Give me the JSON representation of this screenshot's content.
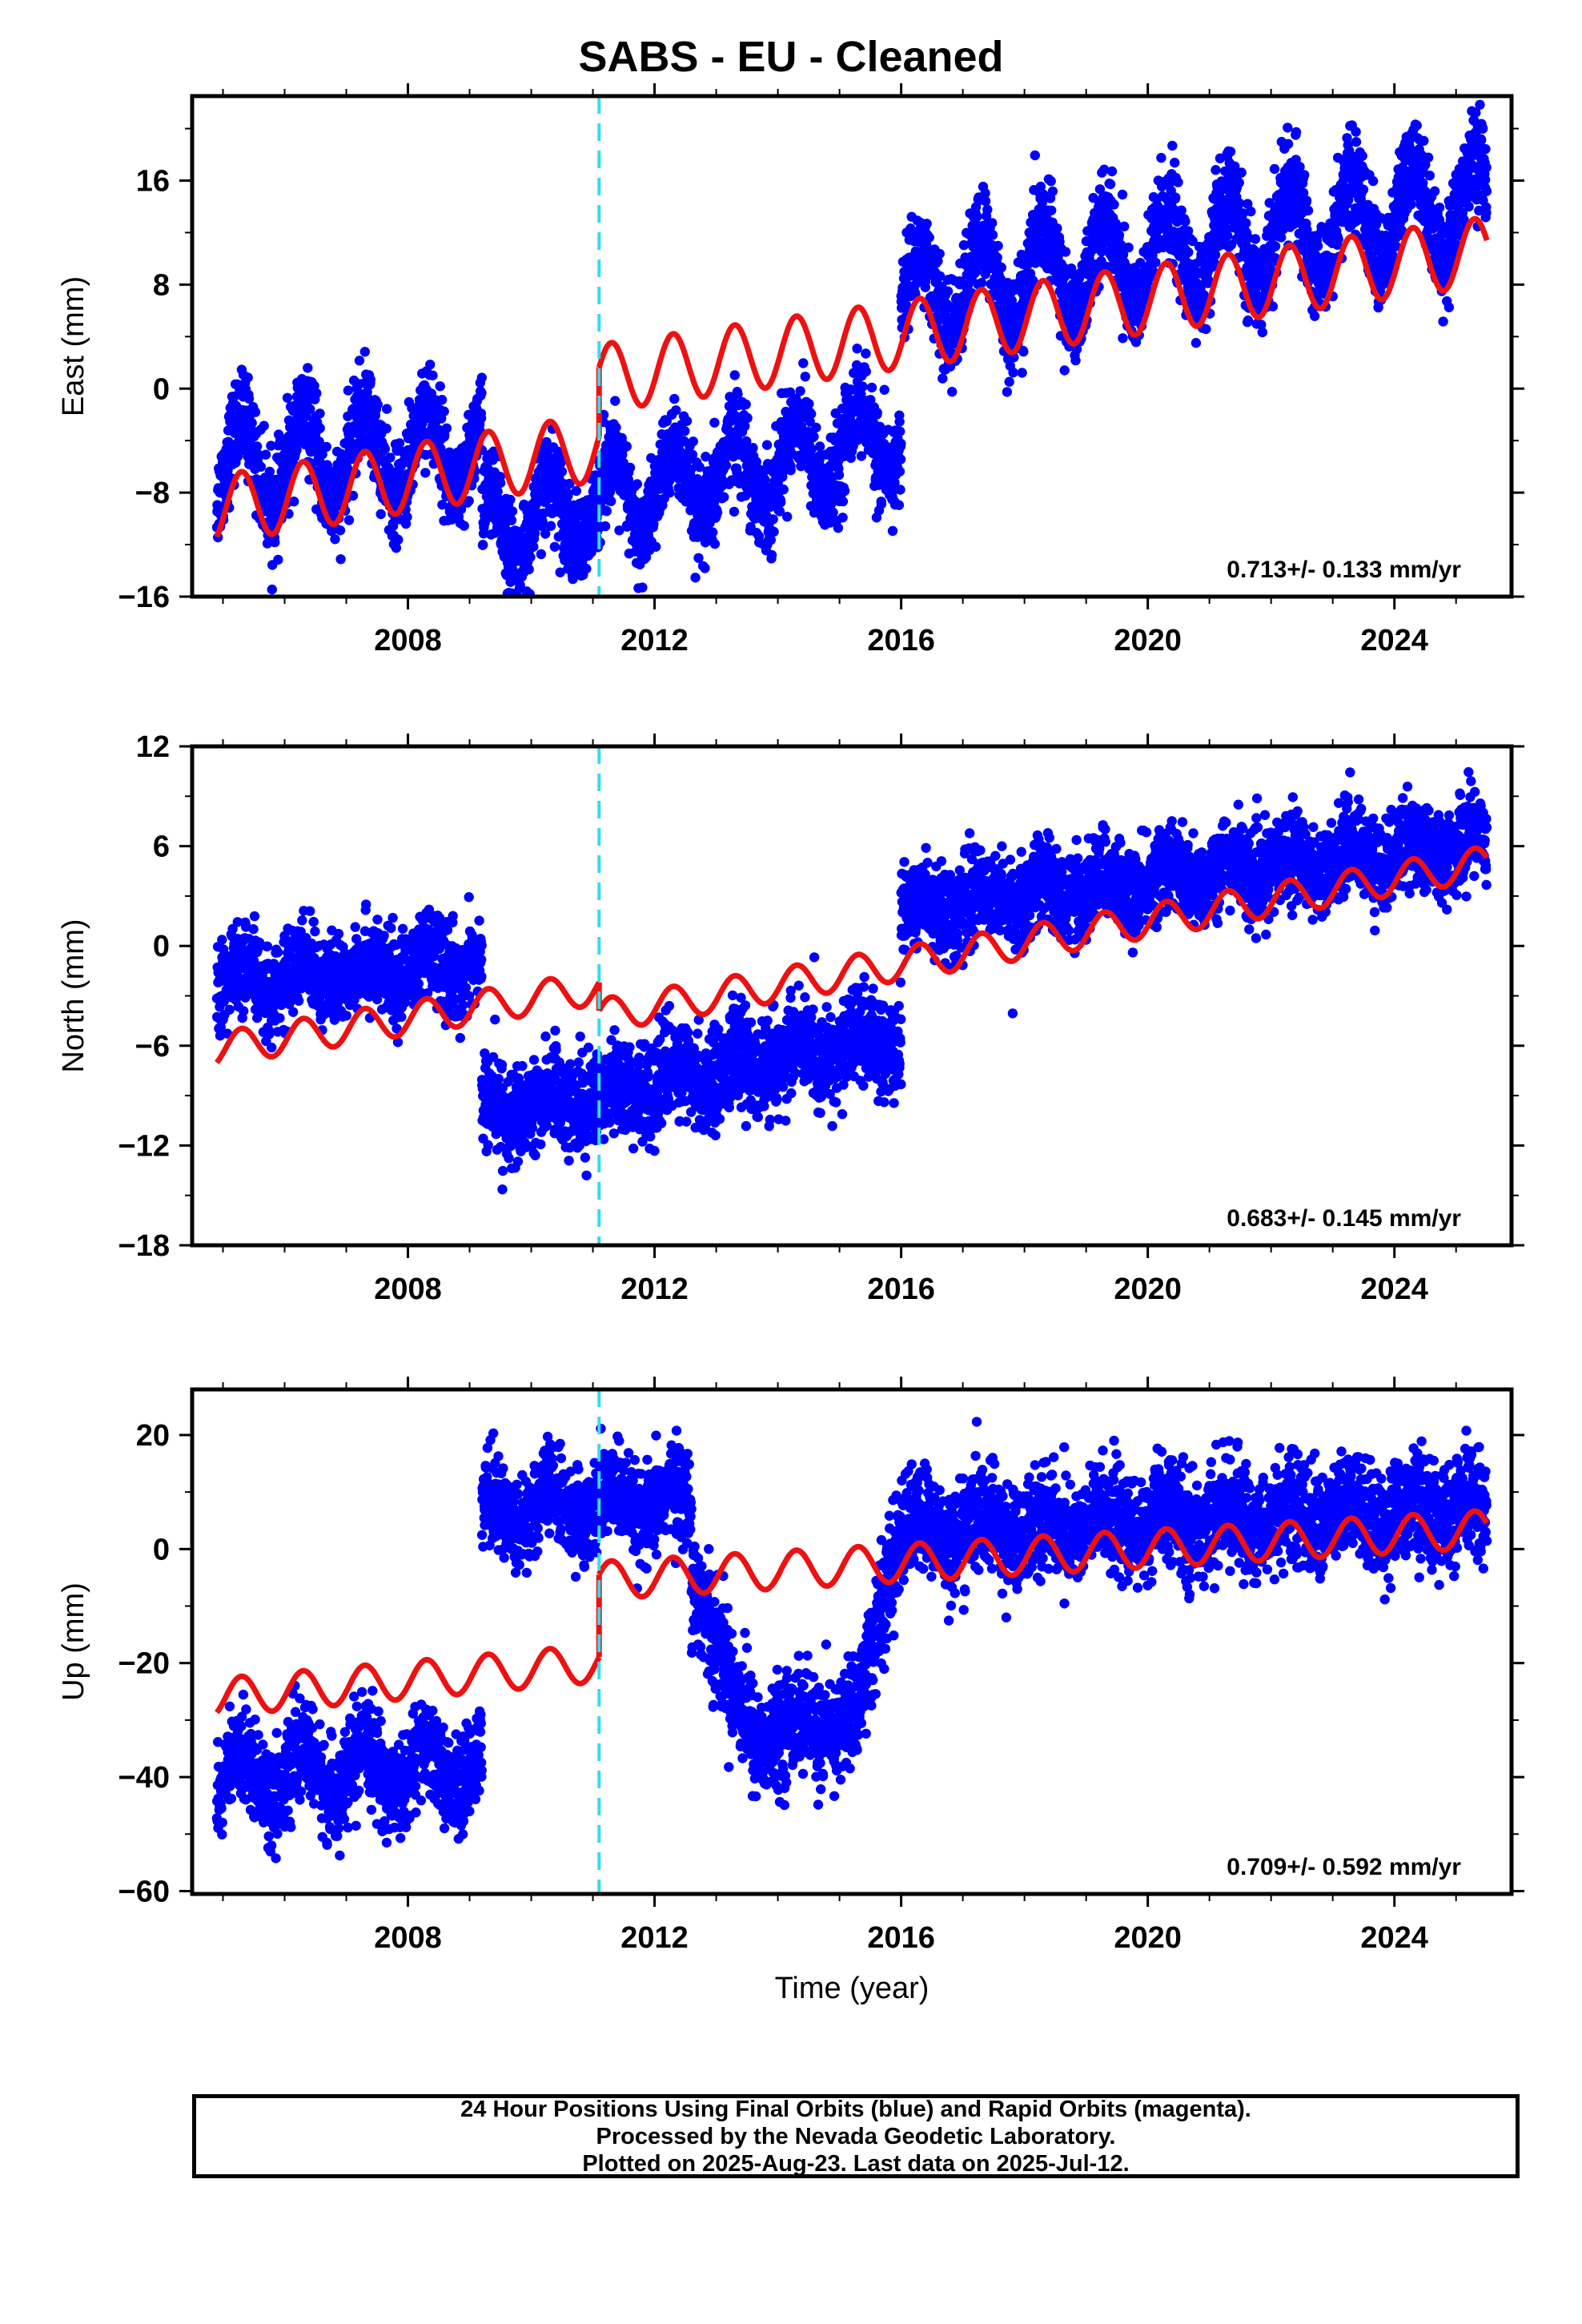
{
  "title": "SABS  - EU - Cleaned",
  "colors": {
    "observations": "#0000ff",
    "model": "#ee1111",
    "event_line": "#33ddee",
    "frame": "#000000"
  },
  "footer": {
    "line1": "24 Hour Positions Using Final Orbits (blue) and Rapid Orbits (magenta).",
    "line2": "Processed by the Nevada Geodetic Laboratory.",
    "line3": "Plotted on 2025-Aug-23. Last data on 2025-Jul-12."
  },
  "chart_data": [
    {
      "type": "scatter",
      "component": "East",
      "ylabel": "East (mm)",
      "xlabel": "",
      "xlim": [
        2004.5,
        2025.9
      ],
      "ylim": [
        -16,
        22.5
      ],
      "yticks": [
        -16,
        -8,
        0,
        8,
        16
      ],
      "xticks": [
        2008,
        2012,
        2016,
        2020,
        2024
      ],
      "event_line_x": 2011.1,
      "rate_label": "0.713+/- 0.133 mm/yr",
      "series": [
        {
          "role": "observations",
          "segments": [
            {
              "x": [
                2004.9,
                2009.2
              ],
              "mean": [
                -6,
                -4.5
              ],
              "amp": 3.5,
              "scatter": 1.8
            },
            {
              "x": [
                2009.2,
                2016.0
              ],
              "mean": [
                -11,
                -3.5
              ],
              "amp": 3.0,
              "scatter": 1.8
            },
            {
              "x": [
                2016.0,
                2025.5
              ],
              "mean": [
                7,
                14.5
              ],
              "amp": 3.5,
              "scatter": 1.8
            }
          ]
        },
        {
          "role": "model",
          "segments": [
            {
              "x": [
                2004.9,
                2011.1
              ],
              "mean": [
                -9.3,
                -4.5
              ],
              "amp": 2.6
            },
            {
              "x": [
                2011.1,
                2025.5
              ],
              "mean": [
                0.8,
                10.6
              ],
              "amp": 2.6
            }
          ]
        }
      ]
    },
    {
      "type": "scatter",
      "component": "North",
      "ylabel": "North (mm)",
      "xlabel": "",
      "xlim": [
        2004.5,
        2025.9
      ],
      "ylim": [
        -18,
        12
      ],
      "yticks": [
        -18,
        -12,
        -6,
        0,
        6,
        12
      ],
      "xticks": [
        2008,
        2012,
        2016,
        2020,
        2024
      ],
      "event_line_x": 2011.1,
      "rate_label": "0.683+/- 0.145 mm/yr",
      "series": [
        {
          "role": "observations",
          "segments": [
            {
              "x": [
                2004.9,
                2009.2
              ],
              "mean": [
                -2.2,
                -1.0
              ],
              "amp": 0.8,
              "scatter": 1.3
            },
            {
              "x": [
                2009.2,
                2016.0
              ],
              "mean": [
                -10.2,
                -5.5
              ],
              "amp": 0.8,
              "scatter": 1.4
            },
            {
              "x": [
                2016.0,
                2025.5
              ],
              "mean": [
                2.2,
                6.3
              ],
              "amp": 0.8,
              "scatter": 1.3
            }
          ]
        },
        {
          "role": "model",
          "segments": [
            {
              "x": [
                2004.9,
                2011.1
              ],
              "mean": [
                -6.2,
                -2.5
              ],
              "amp": 1.0
            },
            {
              "x": [
                2011.1,
                2025.5
              ],
              "mean": [
                -4.2,
                5.0
              ],
              "amp": 1.0
            }
          ]
        }
      ]
    },
    {
      "type": "scatter",
      "component": "Up",
      "ylabel": "Up (mm)",
      "xlabel": "Time (year)",
      "xlim": [
        2004.5,
        2025.9
      ],
      "ylim": [
        -60.5,
        28
      ],
      "yticks": [
        -60,
        -40,
        -20,
        0,
        20
      ],
      "xticks": [
        2008,
        2012,
        2016,
        2020,
        2024
      ],
      "event_line_x": 2011.1,
      "rate_label": "0.709+/- 0.592 mm/yr",
      "series": [
        {
          "role": "observations",
          "segments": [
            {
              "x": [
                2004.9,
                2009.2
              ],
              "mean": [
                -40,
                -38
              ],
              "amp": 4.0,
              "scatter": 4.0
            },
            {
              "x": [
                2009.2,
                2012.6
              ],
              "mean": [
                7,
                8
              ],
              "amp": 3.0,
              "scatter": 4.0
            },
            {
              "x": [
                2012.6,
                2013.6
              ],
              "mean": [
                -5,
                -32
              ],
              "amp": 0.0,
              "scatter": 5.0
            },
            {
              "x": [
                2013.6,
                2015.2
              ],
              "mean": [
                -33,
                -30
              ],
              "amp": 2.0,
              "scatter": 4.5
            },
            {
              "x": [
                2015.2,
                2016.0
              ],
              "mean": [
                -30,
                2
              ],
              "amp": 0.0,
              "scatter": 5.0
            },
            {
              "x": [
                2016.0,
                2025.5
              ],
              "mean": [
                3,
                7
              ],
              "amp": 2.0,
              "scatter": 4.5
            }
          ]
        },
        {
          "role": "model",
          "segments": [
            {
              "x": [
                2004.9,
                2011.1
              ],
              "mean": [
                -26,
                -20
              ],
              "amp": 3.3
            },
            {
              "x": [
                2011.1,
                2025.5
              ],
              "mean": [
                -5.5,
                3.5
              ],
              "amp": 3.3
            }
          ]
        }
      ]
    }
  ]
}
